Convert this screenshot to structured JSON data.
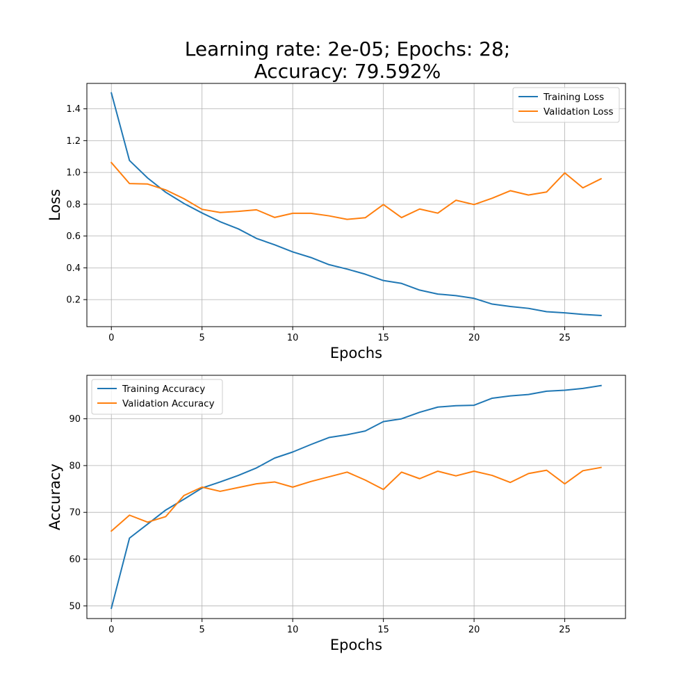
{
  "figure": {
    "title_line1": "Learning rate: 2e-05; Epochs: 28;",
    "title_line2": "Accuracy: 79.592%"
  },
  "colors": {
    "series1": "#1f77b4",
    "series2": "#ff7f0e",
    "grid": "#b0b0b0"
  },
  "chart_data": [
    {
      "type": "line",
      "xlabel": "Epochs",
      "ylabel": "Loss",
      "xlim": [
        -1.35,
        28.35
      ],
      "ylim": [
        0.03,
        1.56
      ],
      "xticks": [
        0,
        5,
        10,
        15,
        20,
        25
      ],
      "yticks": [
        0.2,
        0.4,
        0.6,
        0.8,
        1.0,
        1.2,
        1.4
      ],
      "ytick_labels": [
        "0.2",
        "0.4",
        "0.6",
        "0.8",
        "1.0",
        "1.2",
        "1.4"
      ],
      "grid": true,
      "legend_position": "top-right",
      "x": [
        0,
        1,
        2,
        3,
        4,
        5,
        6,
        7,
        8,
        9,
        10,
        11,
        12,
        13,
        14,
        15,
        16,
        17,
        18,
        19,
        20,
        21,
        22,
        23,
        24,
        25,
        26,
        27
      ],
      "series": [
        {
          "name": "Training Loss",
          "values": [
            1.5,
            1.075,
            0.965,
            0.875,
            0.805,
            0.745,
            0.69,
            0.645,
            0.585,
            0.545,
            0.5,
            0.465,
            0.42,
            0.392,
            0.36,
            0.32,
            0.302,
            0.26,
            0.235,
            0.225,
            0.208,
            0.172,
            0.157,
            0.145,
            0.124,
            0.117,
            0.107,
            0.1
          ]
        },
        {
          "name": "Validation Loss",
          "values": [
            1.062,
            0.93,
            0.927,
            0.89,
            0.835,
            0.768,
            0.748,
            0.755,
            0.765,
            0.717,
            0.743,
            0.743,
            0.727,
            0.705,
            0.715,
            0.798,
            0.716,
            0.77,
            0.744,
            0.825,
            0.798,
            0.838,
            0.885,
            0.858,
            0.877,
            0.997,
            0.903,
            0.96
          ]
        }
      ]
    },
    {
      "type": "line",
      "xlabel": "Epochs",
      "ylabel": "Accuracy",
      "xlim": [
        -1.35,
        28.35
      ],
      "ylim": [
        47.3,
        99.3
      ],
      "xticks": [
        0,
        5,
        10,
        15,
        20,
        25
      ],
      "yticks": [
        50,
        60,
        70,
        80,
        90
      ],
      "ytick_labels": [
        "50",
        "60",
        "70",
        "80",
        "90"
      ],
      "grid": true,
      "legend_position": "top-left",
      "x": [
        0,
        1,
        2,
        3,
        4,
        5,
        6,
        7,
        8,
        9,
        10,
        11,
        12,
        13,
        14,
        15,
        16,
        17,
        18,
        19,
        20,
        21,
        22,
        23,
        24,
        25,
        26,
        27
      ],
      "series": [
        {
          "name": "Training Accuracy",
          "values": [
            49.5,
            64.5,
            67.5,
            70.5,
            72.8,
            75.2,
            76.5,
            77.9,
            79.5,
            81.6,
            82.9,
            84.5,
            86.0,
            86.6,
            87.4,
            89.4,
            90.0,
            91.4,
            92.5,
            92.8,
            92.9,
            94.4,
            94.9,
            95.2,
            95.9,
            96.1,
            96.5,
            97.1
          ]
        },
        {
          "name": "Validation Accuracy",
          "values": [
            66.0,
            69.4,
            67.9,
            69.1,
            73.6,
            75.4,
            74.5,
            75.3,
            76.1,
            76.5,
            75.4,
            76.6,
            77.6,
            78.6,
            76.9,
            74.9,
            78.6,
            77.2,
            78.8,
            77.8,
            78.8,
            77.9,
            76.4,
            78.3,
            79.0,
            76.1,
            78.9,
            79.6
          ]
        }
      ]
    }
  ]
}
